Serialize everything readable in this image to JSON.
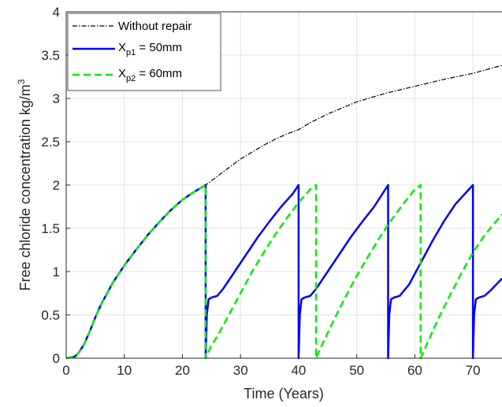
{
  "chart_data": {
    "type": "line",
    "title": "",
    "xlabel": "Time (Years)",
    "ylabel": {
      "main": "Free chloride concentration kg/m",
      "superscript": "3"
    },
    "xlim": [
      0,
      75
    ],
    "ylim": [
      0,
      4
    ],
    "xticks": [
      0,
      10,
      20,
      30,
      40,
      50,
      60,
      70
    ],
    "yticks": [
      0,
      0.5,
      1,
      1.5,
      2,
      2.5,
      3,
      3.5,
      4
    ],
    "grid": true,
    "legend_position": "top-left",
    "series": [
      {
        "legend": {
          "main": "Without repair",
          "sub": "",
          "suffix": ""
        },
        "color": "#000000",
        "style": "dash-dot",
        "x": [
          0,
          1.5,
          2,
          3,
          4,
          5,
          6,
          8,
          10,
          12,
          14,
          16,
          18,
          20,
          22,
          24,
          26,
          28,
          30,
          32,
          34,
          36,
          38,
          40,
          42,
          45,
          50,
          55,
          60,
          65,
          70,
          75
        ],
        "y": [
          0,
          0.02,
          0.05,
          0.15,
          0.3,
          0.47,
          0.62,
          0.87,
          1.07,
          1.25,
          1.42,
          1.57,
          1.71,
          1.83,
          1.92,
          2.0,
          2.1,
          2.2,
          2.3,
          2.38,
          2.46,
          2.53,
          2.59,
          2.64,
          2.72,
          2.82,
          2.96,
          3.06,
          3.14,
          3.22,
          3.29,
          3.38
        ]
      },
      {
        "legend": {
          "main": "X",
          "sub": "p1",
          "suffix": " = 50mm"
        },
        "color": "#0000ff",
        "style": "solid",
        "x": [
          0,
          1.5,
          2,
          3,
          4,
          5,
          6,
          8,
          10,
          12,
          14,
          16,
          18,
          20,
          22,
          24,
          24,
          24.2,
          24.5,
          25,
          26,
          27,
          29,
          31,
          33,
          35,
          37,
          39,
          40,
          40,
          40.2,
          40.5,
          41,
          42,
          43,
          45,
          47,
          49,
          51,
          53,
          55.4,
          55.4,
          55.6,
          55.9,
          56.4,
          57.4,
          59,
          61,
          63,
          65,
          67,
          70,
          70,
          70.2,
          70.5,
          71,
          72,
          73,
          74,
          75
        ],
        "y": [
          0,
          0.02,
          0.05,
          0.15,
          0.3,
          0.47,
          0.62,
          0.87,
          1.07,
          1.25,
          1.42,
          1.57,
          1.71,
          1.83,
          1.92,
          2.0,
          0,
          0.5,
          0.68,
          0.7,
          0.72,
          0.8,
          1.0,
          1.2,
          1.4,
          1.58,
          1.75,
          1.9,
          2.0,
          0,
          0.5,
          0.68,
          0.7,
          0.72,
          0.8,
          1.0,
          1.2,
          1.4,
          1.58,
          1.75,
          2.0,
          0,
          0.5,
          0.68,
          0.7,
          0.72,
          0.85,
          1.1,
          1.35,
          1.58,
          1.78,
          2.0,
          0,
          0.5,
          0.68,
          0.7,
          0.72,
          0.78,
          0.85,
          0.92
        ]
      },
      {
        "legend": {
          "main": "X",
          "sub": "p2",
          "suffix": " = 60mm"
        },
        "color": "#00ee00",
        "style": "dashed",
        "x": [
          0,
          1.5,
          2,
          3,
          4,
          5,
          6,
          8,
          10,
          12,
          14,
          16,
          18,
          20,
          22,
          24,
          24,
          25,
          26,
          28,
          30,
          32,
          34,
          36,
          38,
          40,
          42,
          43,
          43,
          44,
          46,
          48,
          50,
          52,
          54,
          56,
          58,
          60,
          61,
          61,
          62,
          64,
          66,
          68,
          70,
          72,
          74,
          75
        ],
        "y": [
          0,
          0.02,
          0.05,
          0.15,
          0.3,
          0.47,
          0.62,
          0.87,
          1.07,
          1.25,
          1.42,
          1.57,
          1.71,
          1.83,
          1.92,
          2.0,
          0,
          0.15,
          0.25,
          0.5,
          0.75,
          1.0,
          1.22,
          1.43,
          1.62,
          1.8,
          1.95,
          2.0,
          0,
          0.15,
          0.43,
          0.7,
          0.95,
          1.18,
          1.4,
          1.6,
          1.78,
          1.95,
          2.0,
          0,
          0.15,
          0.45,
          0.72,
          0.98,
          1.22,
          1.42,
          1.58,
          1.66
        ]
      }
    ]
  }
}
